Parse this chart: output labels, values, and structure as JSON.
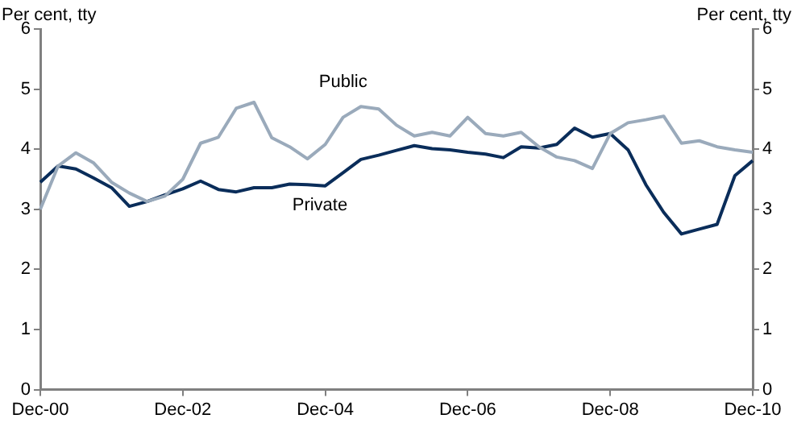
{
  "chart_data": {
    "type": "line",
    "ylabel": "Per cent, tty",
    "y2label": "Per cent, tty",
    "categories": [
      "Dec-00",
      null,
      null,
      null,
      null,
      null,
      null,
      null,
      "Dec-02",
      null,
      null,
      null,
      null,
      null,
      null,
      null,
      "Dec-04",
      null,
      null,
      null,
      null,
      null,
      null,
      null,
      "Dec-06",
      null,
      null,
      null,
      null,
      null,
      null,
      null,
      "Dec-08",
      null,
      null,
      null,
      null,
      null,
      null,
      null,
      "Dec-10"
    ],
    "series": [
      {
        "name": "Public",
        "color": "#9aaabb",
        "values": [
          3.0,
          3.72,
          3.94,
          3.77,
          3.45,
          3.27,
          3.13,
          3.22,
          3.5,
          4.1,
          4.2,
          4.68,
          4.78,
          4.19,
          4.04,
          3.84,
          4.08,
          4.53,
          4.71,
          4.67,
          4.4,
          4.22,
          4.28,
          4.22,
          4.53,
          4.26,
          4.22,
          4.28,
          4.04,
          3.87,
          3.81,
          3.68,
          4.26,
          4.44,
          4.49,
          4.55,
          4.1,
          4.14,
          4.04,
          3.99,
          3.95
        ]
      },
      {
        "name": "Private",
        "color": "#0a2d5a",
        "values": [
          3.45,
          3.72,
          3.67,
          3.52,
          3.36,
          3.05,
          3.13,
          3.24,
          3.34,
          3.47,
          3.33,
          3.29,
          3.36,
          3.36,
          3.42,
          3.41,
          3.39,
          3.61,
          3.83,
          3.9,
          3.98,
          4.06,
          4.01,
          3.99,
          3.95,
          3.92,
          3.86,
          4.04,
          4.02,
          4.08,
          4.35,
          4.2,
          4.26,
          3.99,
          3.41,
          2.95,
          2.59,
          2.67,
          2.75,
          3.56,
          3.81
        ]
      }
    ],
    "ylim": [
      0,
      6
    ],
    "yticks": [
      0,
      1,
      2,
      3,
      4,
      5,
      6
    ],
    "y2lim": [
      0,
      6
    ],
    "y2ticks": [
      0,
      1,
      2,
      3,
      4,
      5,
      6
    ],
    "grid": false,
    "legend": false,
    "marker": "none",
    "line_style": "solid"
  }
}
